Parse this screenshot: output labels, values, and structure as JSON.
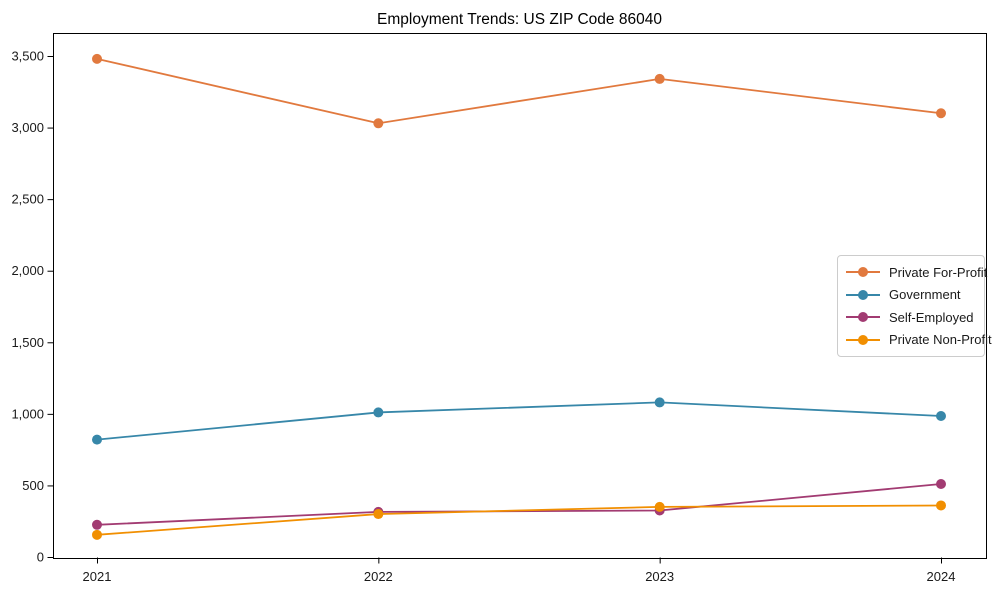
{
  "chart_data": {
    "type": "line",
    "title": "Employment Trends: US ZIP Code 86040",
    "categories": [
      "2021",
      "2022",
      "2023",
      "2024"
    ],
    "series": [
      {
        "name": "Private For-Profit",
        "color": "#E1793E",
        "values": [
          3480,
          3030,
          3340,
          3100
        ]
      },
      {
        "name": "Government",
        "color": "#3787A9",
        "values": [
          820,
          1010,
          1080,
          985
        ]
      },
      {
        "name": "Self-Employed",
        "color": "#A23B72",
        "values": [
          225,
          315,
          325,
          510
        ]
      },
      {
        "name": "Private Non-Profit",
        "color": "#F18F01",
        "values": [
          155,
          300,
          350,
          360
        ]
      }
    ],
    "xlabel": "",
    "ylabel": "",
    "ylim": [
      0,
      3500
    ],
    "y_ticks": [
      0,
      500,
      1000,
      1500,
      2000,
      2500,
      3000,
      3500
    ],
    "y_tick_labels": [
      "0",
      "500",
      "1,000",
      "1,500",
      "2,000",
      "2,500",
      "3,000",
      "3,500"
    ],
    "grid": false,
    "legend_position": "center-right",
    "marker": "circle",
    "axis_color": "#000000",
    "tick_label_color": "#1a1a1a"
  }
}
